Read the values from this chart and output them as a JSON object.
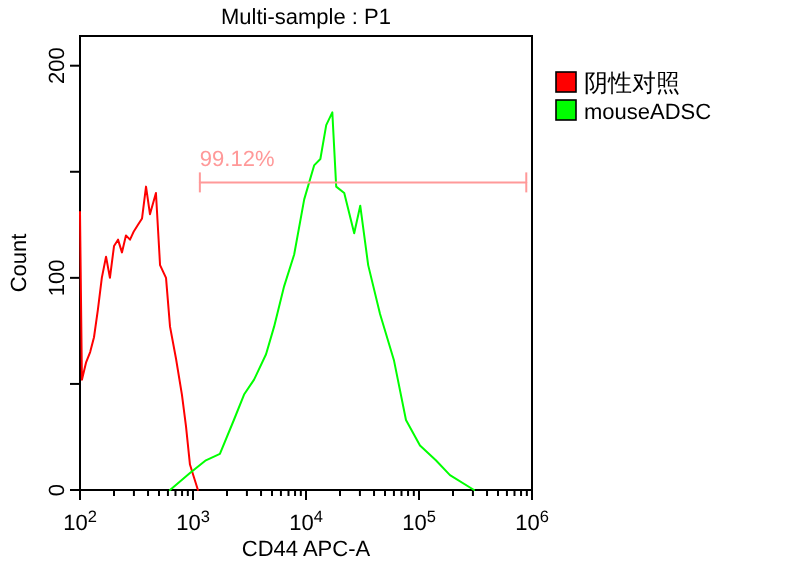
{
  "chart_data": {
    "type": "line",
    "title": "Multi-sample : P1",
    "xlabel": "CD44 APC-A",
    "ylabel": "Count",
    "log": "x",
    "grid": false,
    "legend": "top right",
    "marker": "none",
    "line_style": "solid",
    "xlim": [
      100,
      1000000
    ],
    "ylim": [
      0,
      214
    ],
    "xticks": [
      {
        "value": 100,
        "label": "10$^{2}$"
      },
      {
        "value": 200,
        "label": null
      },
      {
        "value": 300,
        "label": null
      },
      {
        "value": 400,
        "label": null
      },
      {
        "value": 500,
        "label": null
      },
      {
        "value": 600,
        "label": null
      },
      {
        "value": 700,
        "label": null
      },
      {
        "value": 800,
        "label": null
      },
      {
        "value": 900,
        "label": null
      },
      {
        "value": 1000,
        "label": "10$^{3}$"
      },
      {
        "value": 2000,
        "label": null
      },
      {
        "value": 3000,
        "label": null
      },
      {
        "value": 4000,
        "label": null
      },
      {
        "value": 5000,
        "label": null
      },
      {
        "value": 6000,
        "label": null
      },
      {
        "value": 7000,
        "label": null
      },
      {
        "value": 8000,
        "label": null
      },
      {
        "value": 9000,
        "label": null
      },
      {
        "value": 10000,
        "label": "10$^{4}$"
      },
      {
        "value": 20000,
        "label": null
      },
      {
        "value": 30000,
        "label": null
      },
      {
        "value": 40000,
        "label": null
      },
      {
        "value": 50000,
        "label": null
      },
      {
        "value": 60000,
        "label": null
      },
      {
        "value": 70000,
        "label": null
      },
      {
        "value": 80000,
        "label": null
      },
      {
        "value": 90000,
        "label": null
      },
      {
        "value": 100000,
        "label": "10$^{5}$"
      },
      {
        "value": 200000,
        "label": null
      },
      {
        "value": 300000,
        "label": null
      },
      {
        "value": 400000,
        "label": null
      },
      {
        "value": 500000,
        "label": null
      },
      {
        "value": 600000,
        "label": null
      },
      {
        "value": 700000,
        "label": null
      },
      {
        "value": 800000,
        "label": null
      },
      {
        "value": 900000,
        "label": null
      },
      {
        "value": 1000000,
        "label": "10$^{6}$"
      }
    ],
    "yticks": [
      0,
      {
        "value": 50,
        "label": null
      },
      100,
      {
        "value": 150,
        "label": null
      },
      200
    ],
    "annotations": [
      {
        "text": "99.12%",
        "x": 1150,
        "y": 145
      }
    ],
    "series": [
      {
        "name": "阴性对照",
        "color": "#ff0000",
        "x": [
          100,
          104,
          113,
          123,
          133,
          144,
          156,
          170,
          184,
          200,
          217,
          235,
          255,
          277,
          300,
          326,
          354,
          384,
          416,
          470,
          511,
          577,
          626,
          707,
          798,
          867,
          940,
          1019,
          1106
        ],
        "values": [
          131,
          52,
          60,
          65,
          72,
          85,
          100,
          110,
          100,
          115,
          118,
          112,
          120,
          118,
          122,
          125,
          128,
          143,
          130,
          140,
          106,
          100,
          77,
          62,
          45,
          30,
          12,
          6,
          0
        ]
      },
      {
        "name": "mouseADSC",
        "color": "#00ff00",
        "x": [
          626,
          940,
          1300,
          1730,
          2300,
          2830,
          3470,
          4430,
          5220,
          6400,
          7860,
          9640,
          11800,
          13400,
          15100,
          17100,
          18500,
          21800,
          26700,
          30200,
          35500,
          45200,
          60100,
          76700,
          102000,
          141000,
          188000,
          307000
        ],
        "values": [
          0,
          8,
          14,
          17,
          33,
          45,
          52,
          64,
          77,
          96,
          111,
          137,
          153,
          156,
          172,
          178,
          143,
          140,
          121,
          134,
          106,
          83,
          61,
          33,
          21,
          14,
          7,
          0
        ]
      },
      {
        "type": "line",
        "color": "#ff9999",
        "x": [
          1150,
          890000
        ],
        "values": [
          145,
          145
        ]
      }
    ]
  }
}
